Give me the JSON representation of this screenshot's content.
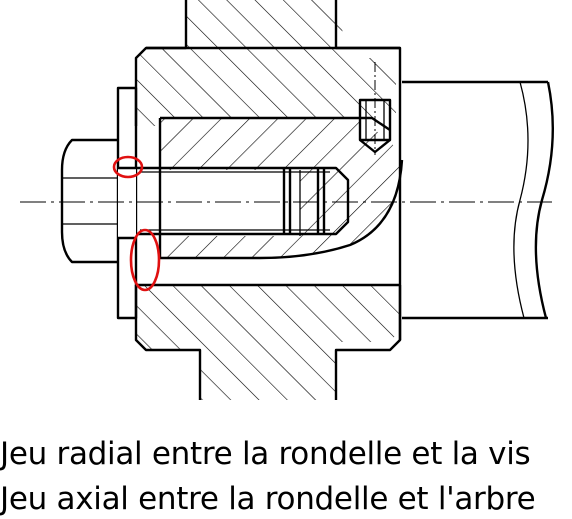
{
  "labels": {
    "radial": "Jeu radial entre la rondelle et la vis",
    "axial": "Jeu axial entre la rondelle et l'arbre"
  },
  "colors": {
    "line": "#000000",
    "highlight": "#e01010",
    "background": "#ffffff"
  }
}
